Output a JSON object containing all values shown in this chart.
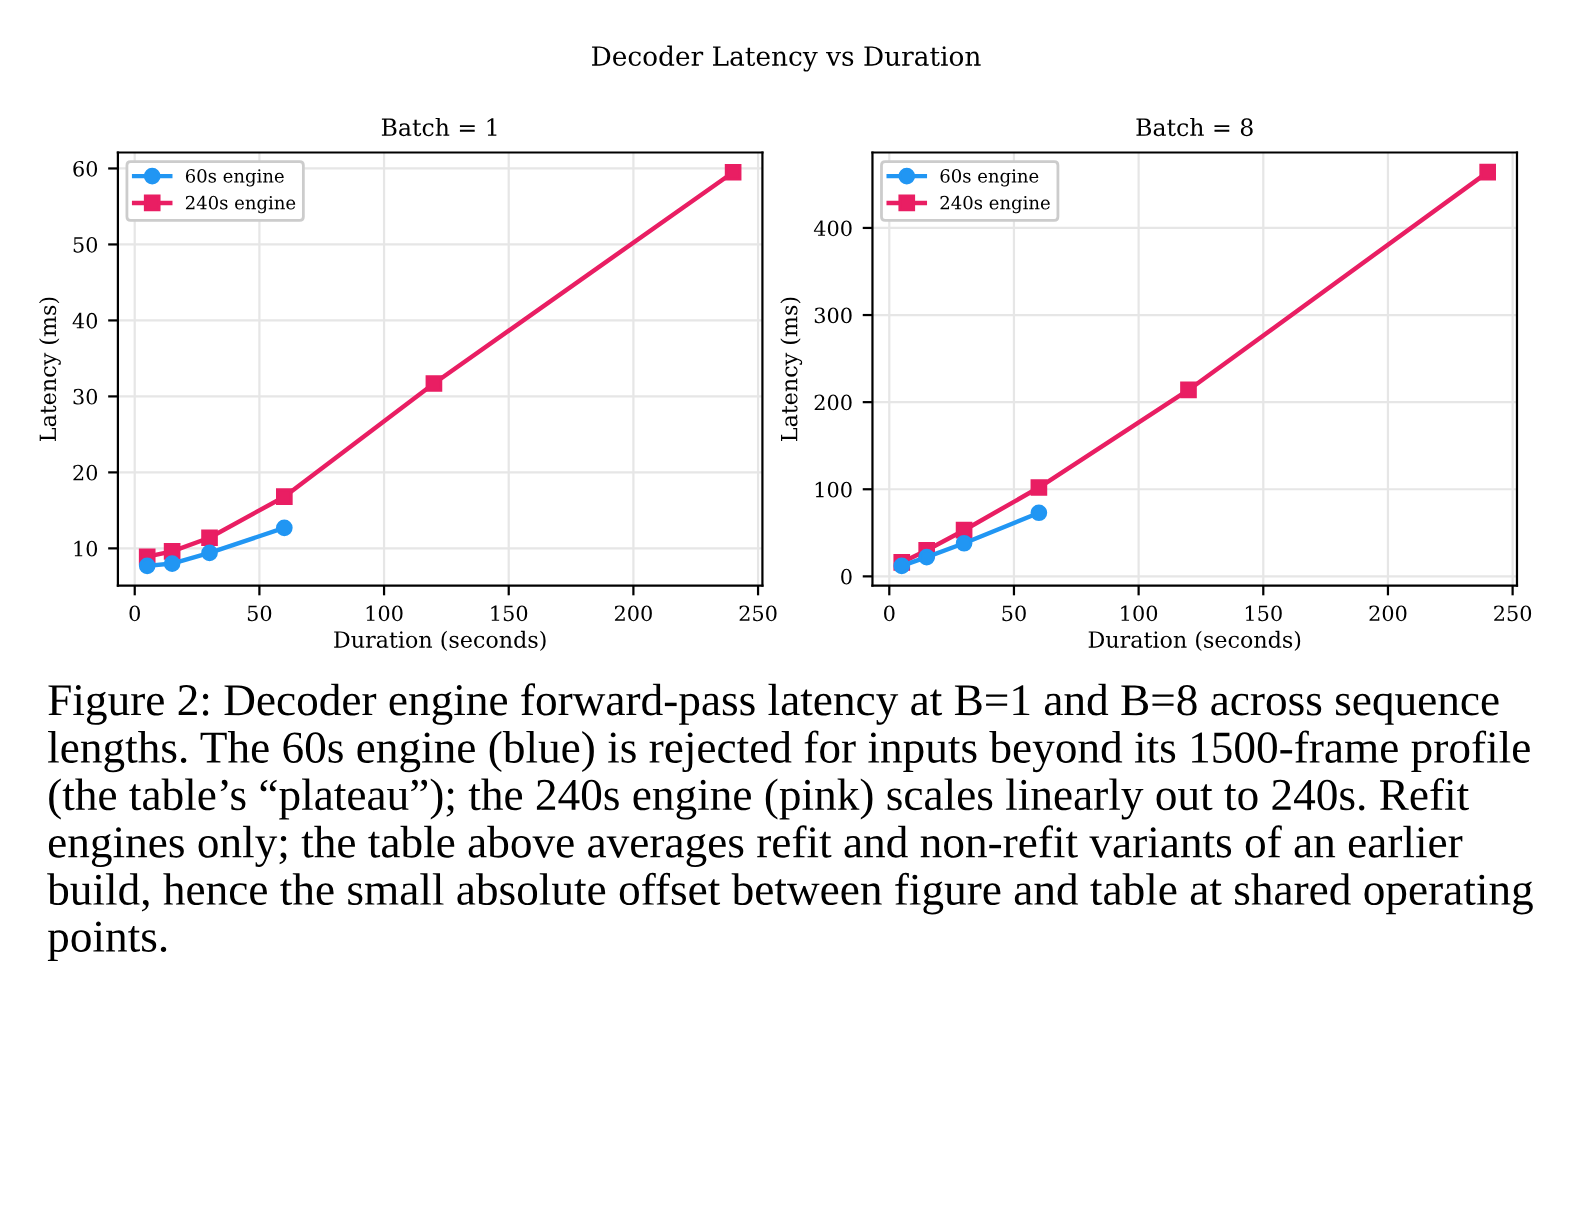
{
  "chart_data": [
    {
      "type": "other",
      "title": "Decoder Latency vs Duration",
      "annotations": [
        "Figure 2: Decoder engine forward-pass latency at B=1 and B=8 across sequence lengths. The 60s engine (blue) is rejected for inputs beyond its 1500-frame profile (the table’s “plateau”); the 240s engine (pink) scales linearly out to 240s. Refit engines only; the table above averages refit and non-refit variants of an earlier build, hence the small absolute offset between figure and table at shared operating points."
      ]
    },
    {
      "type": "line",
      "title": "Batch = 1",
      "xlabel": "Duration (seconds)",
      "ylabel": "Latency (ms)",
      "series": [
        {
          "name": "60s engine",
          "color": "#2196f3",
          "marker": "circle",
          "x": [
            5,
            15,
            30,
            60
          ],
          "values": [
            7.7,
            8.0,
            9.4,
            12.7
          ]
        },
        {
          "name": "240s engine",
          "color": "#e91e63",
          "marker": "square",
          "x": [
            5,
            15,
            30,
            60,
            120,
            240
          ],
          "values": [
            8.9,
            9.6,
            11.4,
            16.8,
            31.7,
            59.5
          ]
        }
      ],
      "xlim": [
        -6.75,
        251.75
      ],
      "xticks": [
        0,
        50,
        100,
        150,
        200,
        250
      ],
      "ylim": [
        5.1,
        62.1
      ],
      "yticks": [
        10,
        20,
        30,
        40,
        50,
        60
      ],
      "grid": true,
      "legend": "top left",
      "line_style": "solid"
    },
    {
      "type": "line",
      "title": "Batch = 8",
      "xlabel": "Duration (seconds)",
      "ylabel": "Latency (ms)",
      "series": [
        {
          "name": "60s engine",
          "color": "#2196f3",
          "marker": "circle",
          "x": [
            5,
            15,
            30,
            60
          ],
          "values": [
            12,
            22,
            38,
            73
          ]
        },
        {
          "name": "240s engine",
          "color": "#e91e63",
          "marker": "square",
          "x": [
            5,
            15,
            30,
            60,
            120,
            240
          ],
          "values": [
            16,
            30,
            53,
            102,
            214,
            464
          ]
        }
      ],
      "xlim": [
        -6.75,
        251.75
      ],
      "xticks": [
        0,
        50,
        100,
        150,
        200,
        250
      ],
      "ylim": [
        -10.6,
        486.6
      ],
      "yticks": [
        0,
        100,
        200,
        300,
        400
      ],
      "grid": true,
      "legend": "top left",
      "line_style": "solid"
    }
  ]
}
